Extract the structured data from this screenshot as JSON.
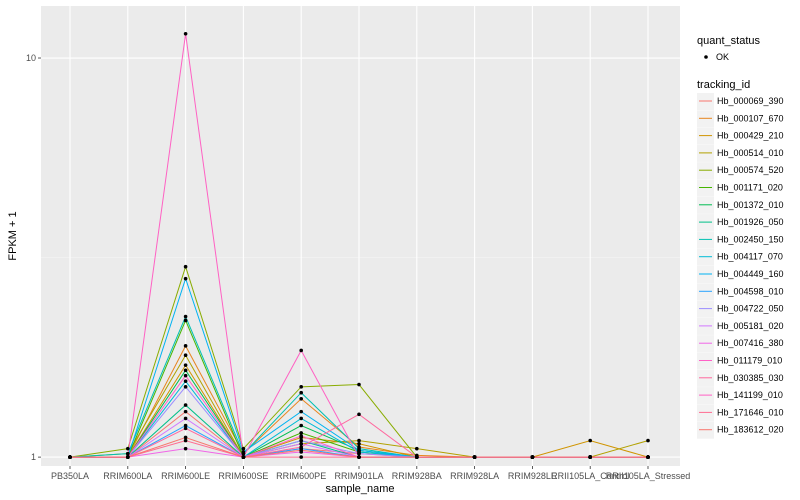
{
  "chart_data": {
    "type": "line",
    "xlabel": "sample_name",
    "ylabel": "FPKM + 1",
    "y_scale": "log10",
    "ylim": [
      0.95,
      13.5
    ],
    "y_ticks": [
      1,
      10
    ],
    "y_tick_labels": [
      "1",
      "10"
    ],
    "background": "#ebebeb",
    "grid": true,
    "legend_position": "right",
    "categories": [
      "PB350LA",
      "RRIM600LA",
      "RRIM600LE",
      "RRIM600SE",
      "RRIM600PE",
      "RRIM901LA",
      "RRIM928BA",
      "RRIM928LA",
      "RRIM928LE",
      "RRII105LA_Control",
      "RRII105LA_Stressed"
    ],
    "point_legend": {
      "title": "quant_status",
      "label": "OK"
    },
    "series_legend_title": "tracking_id",
    "series": [
      {
        "name": "Hb_000069_390",
        "color": "#F8766D",
        "values": [
          1.0,
          1.0,
          1.3,
          1.0,
          1.05,
          1.02,
          1.0,
          1.0,
          1.0,
          1.0,
          1.0
        ]
      },
      {
        "name": "Hb_000107_670",
        "color": "#E7851E",
        "values": [
          1.0,
          1.0,
          1.9,
          1.02,
          1.4,
          1.06,
          1.01,
          1.0,
          1.0,
          1.0,
          1.0
        ]
      },
      {
        "name": "Hb_000429_210",
        "color": "#D09400",
        "values": [
          1.0,
          1.0,
          1.7,
          1.0,
          1.12,
          1.08,
          1.0,
          1.0,
          1.0,
          1.1,
          1.0
        ]
      },
      {
        "name": "Hb_000514_010",
        "color": "#B2A100",
        "values": [
          1.0,
          1.02,
          1.8,
          1.0,
          1.08,
          1.1,
          1.05,
          1.0,
          1.0,
          1.0,
          1.1
        ]
      },
      {
        "name": "Hb_000574_520",
        "color": "#89AC00",
        "values": [
          1.0,
          1.05,
          3.0,
          1.05,
          1.5,
          1.52,
          1.0,
          1.0,
          1.0,
          1.0,
          1.0
        ]
      },
      {
        "name": "Hb_001171_020",
        "color": "#45B500",
        "values": [
          1.0,
          1.0,
          2.2,
          1.0,
          1.15,
          1.03,
          1.0,
          1.0,
          1.0,
          1.0,
          1.0
        ]
      },
      {
        "name": "Hb_001372_010",
        "color": "#00BC51",
        "values": [
          1.0,
          1.0,
          1.65,
          1.0,
          1.2,
          1.04,
          1.0,
          1.0,
          1.0,
          1.0,
          1.0
        ]
      },
      {
        "name": "Hb_001926_050",
        "color": "#00C087",
        "values": [
          1.0,
          1.0,
          1.35,
          1.0,
          1.1,
          1.0,
          1.0,
          1.0,
          1.0,
          1.0,
          1.0
        ]
      },
      {
        "name": "Hb_002450_150",
        "color": "#00C0B2",
        "values": [
          1.0,
          1.02,
          2.25,
          1.02,
          1.45,
          1.05,
          1.0,
          1.0,
          1.0,
          1.0,
          1.0
        ]
      },
      {
        "name": "Hb_004117_070",
        "color": "#00BCD6",
        "values": [
          1.0,
          1.0,
          1.55,
          1.0,
          1.25,
          1.03,
          1.0,
          1.0,
          1.0,
          1.0,
          1.0
        ]
      },
      {
        "name": "Hb_004449_160",
        "color": "#00B3F2",
        "values": [
          1.0,
          1.0,
          2.8,
          1.03,
          1.3,
          1.04,
          1.0,
          1.0,
          1.0,
          1.0,
          1.0
        ]
      },
      {
        "name": "Hb_004598_010",
        "color": "#29A3FF",
        "values": [
          1.0,
          1.0,
          1.2,
          1.0,
          1.05,
          1.0,
          1.0,
          1.0,
          1.0,
          1.0,
          1.0
        ]
      },
      {
        "name": "Hb_004722_050",
        "color": "#9C8DFF",
        "values": [
          1.0,
          1.0,
          1.5,
          1.0,
          1.1,
          1.02,
          1.0,
          1.0,
          1.0,
          1.0,
          1.0
        ]
      },
      {
        "name": "Hb_005181_020",
        "color": "#D277FF",
        "values": [
          1.0,
          1.0,
          1.25,
          1.0,
          1.08,
          1.0,
          1.0,
          1.0,
          1.0,
          1.0,
          1.0
        ]
      },
      {
        "name": "Hb_007416_380",
        "color": "#F166E8",
        "values": [
          1.0,
          1.0,
          1.05,
          1.0,
          1.03,
          1.0,
          1.0,
          1.0,
          1.0,
          1.0,
          1.0
        ]
      },
      {
        "name": "Hb_011179_010",
        "color": "#FF61C7",
        "values": [
          1.0,
          1.0,
          1.6,
          1.0,
          1.13,
          1.0,
          1.0,
          1.0,
          1.0,
          1.0,
          1.0
        ]
      },
      {
        "name": "Hb_030385_030",
        "color": "#FF689E",
        "values": [
          1.0,
          1.0,
          1.18,
          1.0,
          1.06,
          1.28,
          1.0,
          1.0,
          1.0,
          1.0,
          1.0
        ]
      },
      {
        "name": "Hb_141199_010",
        "color": "#FF61C3",
        "values": [
          1.0,
          1.0,
          11.5,
          1.0,
          1.85,
          1.0,
          1.0,
          1.0,
          1.0,
          1.0,
          1.0
        ]
      },
      {
        "name": "Hb_171646_010",
        "color": "#FF6C91",
        "values": [
          1.0,
          1.0,
          1.1,
          1.0,
          1.0,
          1.0,
          1.0,
          1.0,
          1.0,
          1.0,
          1.0
        ]
      },
      {
        "name": "Hb_183612_020",
        "color": "#F8766D",
        "values": [
          1.0,
          1.0,
          1.12,
          1.0,
          1.04,
          1.0,
          1.0,
          1.0,
          1.0,
          1.0,
          1.0
        ]
      }
    ]
  }
}
